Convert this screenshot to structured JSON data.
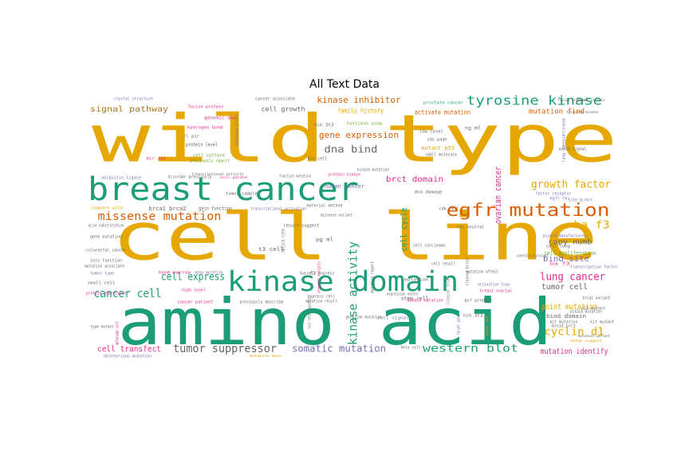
{
  "chart_data": {
    "type": "wordcloud",
    "title": "All Text Data",
    "colors": {
      "gold": "#E6A800",
      "teal": "#1B9E77",
      "orange": "#D95F02",
      "purple": "#7570B3",
      "pink": "#E7298A",
      "green": "#66A61E",
      "brown": "#A6761D",
      "gray": "#666666"
    },
    "words": [
      {
        "text": "wild type",
        "color": "#E6A800"
      },
      {
        "text": "cell line",
        "color": "#E6A800"
      },
      {
        "text": "amino acid",
        "color": "#1B9E77"
      },
      {
        "text": "breast cancer",
        "color": "#1B9E77"
      },
      {
        "text": "kinase domain",
        "color": "#1B9E77"
      },
      {
        "text": "egfr mutation",
        "color": "#D95F02"
      },
      {
        "text": "tyrosine kinase",
        "color": "#1B9E77"
      },
      {
        "text": "kinase activity",
        "color": "#1B9E77"
      },
      {
        "text": "missense mutation",
        "color": "#D95F02"
      },
      {
        "text": "cancer cell",
        "color": "#1B9E77"
      },
      {
        "text": "cell express",
        "color": "#1B9E77"
      },
      {
        "text": "tumor suppressor",
        "color": "#666666"
      },
      {
        "text": "lung cancer",
        "color": "#E7298A"
      },
      {
        "text": "western blot",
        "color": "#1B9E77"
      },
      {
        "text": "somatic mutation",
        "color": "#7570B3"
      },
      {
        "text": "cyclin d1",
        "color": "#E6A800"
      },
      {
        "text": "growth factor",
        "color": "#E6A800"
      },
      {
        "text": "ba f3",
        "color": "#E6A800"
      },
      {
        "text": "dna bind",
        "color": "#666666"
      },
      {
        "text": "gene expression",
        "color": "#D95F02"
      },
      {
        "text": "kinase inhibitor",
        "color": "#D95F02"
      },
      {
        "text": "signal pathway",
        "color": "#A6761D"
      },
      {
        "text": "cell transfect",
        "color": "#E7298A"
      },
      {
        "text": "mutation identify",
        "color": "#E7298A"
      },
      {
        "text": "point mutation",
        "color": "#E6A800"
      },
      {
        "text": "ovarian cancer",
        "color": "#E7298A"
      },
      {
        "text": "brct domain",
        "color": "#E7298A"
      },
      {
        "text": "cell cycle",
        "color": "#1B9E77"
      },
      {
        "text": "bind site",
        "color": "#7570B3"
      },
      {
        "text": "tumor cell",
        "color": "#666666"
      },
      {
        "text": "copy numb",
        "color": "#666666"
      },
      {
        "text": "mutation find",
        "color": "#D95F02"
      },
      {
        "text": "activate mutation",
        "color": "#D95F02"
      },
      {
        "text": "cell growth",
        "color": "#666666"
      },
      {
        "text": "family history",
        "color": "#E6A800"
      },
      {
        "text": "human cancer",
        "color": "#7570B3"
      },
      {
        "text": "mutant p53",
        "color": "#E6A800"
      },
      {
        "text": "cell proliferation",
        "color": "#66A61E"
      },
      {
        "text": "bind domain",
        "color": "#666666"
      },
      {
        "text": "brca1 brca2",
        "color": "#666666"
      },
      {
        "text": "gain function",
        "color": "#666666"
      },
      {
        "text": "protein level",
        "color": "#666666"
      },
      {
        "text": "cancer associate",
        "color": "#666666"
      },
      {
        "text": "prostate cancer",
        "color": "#1B9E77"
      },
      {
        "text": "missense variant",
        "color": "#666666"
      },
      {
        "text": "transcriptional activation",
        "color": "#7570B3"
      },
      {
        "text": "functional assay",
        "color": "#66A61E"
      },
      {
        "text": "low level",
        "color": "#666666"
      },
      {
        "text": "crystal structure",
        "color": "#7570B3"
      },
      {
        "text": "hydrogen bond",
        "color": "#E7298A"
      },
      {
        "text": "fusion protein",
        "color": "#E7298A"
      },
      {
        "text": "genomic dna",
        "color": "#E7298A"
      },
      {
        "text": "cell culture",
        "color": "#66A61E"
      },
      {
        "text": "previously report",
        "color": "#66A61E"
      },
      {
        "text": "ubiquitin ligase",
        "color": "#7570B3"
      },
      {
        "text": "disorder previously",
        "color": "#666666"
      },
      {
        "text": "tumor sample",
        "color": "#666666"
      },
      {
        "text": "small cell",
        "color": "#666666"
      },
      {
        "text": "tyrosine kinase",
        "color": "#666666"
      },
      {
        "text": "dna damage",
        "color": "#666666"
      },
      {
        "text": "nsclc patient",
        "color": "#E7298A"
      },
      {
        "text": "mutation associate",
        "color": "#666666"
      },
      {
        "text": "loss function",
        "color": "#666666"
      },
      {
        "text": "colorectal cancer",
        "color": "#666666"
      },
      {
        "text": "protein expression",
        "color": "#E7298A"
      },
      {
        "text": "gene mutation",
        "color": "#666666"
      },
      {
        "text": "acid substitution",
        "color": "#666666"
      },
      {
        "text": "compare wild",
        "color": "#E6A800"
      },
      {
        "text": "bone marrow",
        "color": "#E7298A"
      },
      {
        "text": "result suggest",
        "color": "#666666"
      },
      {
        "text": "splice site",
        "color": "#666666"
      },
      {
        "text": "t3 cell",
        "color": "#666666"
      },
      {
        "text": "high level",
        "color": "#E7298A"
      },
      {
        "text": "cancer patient",
        "color": "#E7298A"
      },
      {
        "text": "previously describe",
        "color": "#666666"
      },
      {
        "text": "express cell",
        "color": "#666666"
      },
      {
        "text": "mutation result",
        "color": "#666666"
      },
      {
        "text": "stem cell",
        "color": "#666666"
      },
      {
        "text": "cell signal",
        "color": "#7570B3"
      },
      {
        "text": "domain mutation",
        "color": "#E7298A"
      },
      {
        "text": "activation loop",
        "color": "#7570B3"
      },
      {
        "text": "breast ovarian",
        "color": "#E7298A"
      },
      {
        "text": "pcr product",
        "color": "#666666"
      },
      {
        "text": "overall survival",
        "color": "#666666"
      },
      {
        "text": "transcription factor",
        "color": "#7570B3"
      },
      {
        "text": "accord manufacturer",
        "color": "#7570B3"
      },
      {
        "text": "factor receptor",
        "color": "#7570B3"
      },
      {
        "text": "cell lung",
        "color": "#666666"
      },
      {
        "text": "clinical trial",
        "color": "#666666"
      },
      {
        "text": "cell carcinoma",
        "color": "#666666"
      },
      {
        "text": "notch signal",
        "color": "#666666"
      },
      {
        "text": "lung adenocarcinoma",
        "color": "#7570B3"
      },
      {
        "text": "fusion protein",
        "color": "#666666"
      },
      {
        "text": "mutant protein",
        "color": "#666666"
      },
      {
        "text": "mutation variant",
        "color": "#666666"
      },
      {
        "text": "deleterious mutation",
        "color": "#7570B3"
      },
      {
        "text": "mutation mean",
        "color": "#E6A800"
      },
      {
        "text": "datum suggest",
        "color": "#E6A800"
      },
      {
        "text": "ras neutral",
        "color": "#666666"
      },
      {
        "text": "phosphatase activity",
        "color": "#7570B3"
      },
      {
        "text": "transcriptional activity",
        "color": "#666666"
      },
      {
        "text": "function mutation",
        "color": "#666666"
      },
      {
        "text": "protein kinase",
        "color": "#E7298A"
      },
      {
        "text": "material method",
        "color": "#666666"
      },
      {
        "text": "mutation affect",
        "color": "#666666"
      },
      {
        "text": "expression vector",
        "color": "#666666"
      },
      {
        "text": "kit mutation",
        "color": "#666666"
      },
      {
        "text": "brca1 variant",
        "color": "#666666"
      },
      {
        "text": "melanoma cell",
        "color": "#E7298A"
      },
      {
        "text": "mutation report",
        "color": "#666666"
      },
      {
        "text": "target gene",
        "color": "#7570B3"
      },
      {
        "text": "mean mutation",
        "color": "#7570B3"
      },
      {
        "text": "sequence analysis",
        "color": "#E7298A"
      },
      {
        "text": "type mutant",
        "color": "#666666"
      },
      {
        "text": "nih 3t3",
        "color": "#666666"
      },
      {
        "text": "sds page",
        "color": "#666666"
      },
      {
        "text": "cell result",
        "color": "#666666"
      },
      {
        "text": "ba f3",
        "color": "#E7298A"
      },
      {
        "text": "p53 mutant",
        "color": "#666666"
      },
      {
        "text": "egfr tki",
        "color": "#7570B3"
      },
      {
        "text": "site direct",
        "color": "#7570B3"
      },
      {
        "text": "bcr abl",
        "color": "#E7298A"
      },
      {
        "text": "rl pir",
        "color": "#666666"
      },
      {
        "text": "pg ml",
        "color": "#666666"
      },
      {
        "text": "nih 3t3",
        "color": "#666666"
      },
      {
        "text": "hela cell",
        "color": "#666666"
      },
      {
        "text": "small molecule",
        "color": "#666666"
      },
      {
        "text": "tumor type",
        "color": "#7570B3"
      },
      {
        "text": "mutant form",
        "color": "#E6A800"
      },
      {
        "text": "cleaved brca1",
        "color": "#666666"
      },
      {
        "text": "brca1 brct",
        "color": "#666666"
      },
      {
        "text": "kit mutant",
        "color": "#666666"
      },
      {
        "text": "pik3ca mutation",
        "color": "#666666"
      },
      {
        "text": "germline mutation",
        "color": "#666666"
      },
      {
        "text": "cell express",
        "color": "#666666"
      },
      {
        "text": "ng ml",
        "color": "#666666"
      },
      {
        "text": "loss heterozygosity",
        "color": "#666666"
      },
      {
        "text": "ba f3",
        "color": "#666666"
      },
      {
        "text": "hcc cell",
        "color": "#666666"
      },
      {
        "text": "cdk cell",
        "color": "#666666"
      },
      {
        "text": "kinase mutation",
        "color": "#666666"
      },
      {
        "text": "mutation",
        "color": "#666666"
      }
    ]
  }
}
